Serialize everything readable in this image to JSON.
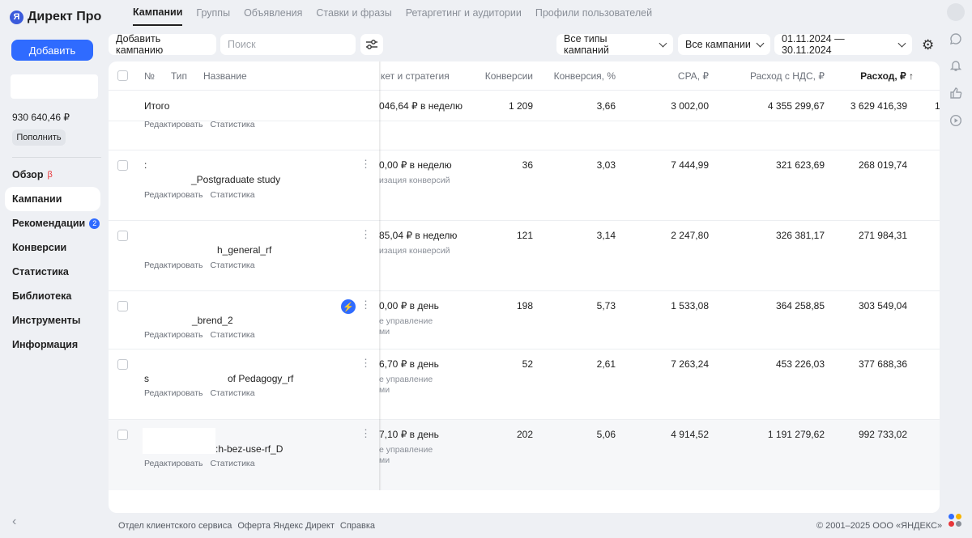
{
  "app": {
    "logo_text": "Директ Про",
    "logo_glyph": "Я"
  },
  "sidebar": {
    "add_button": "Добавить",
    "balance": "930 640,46 ₽",
    "topup_button": "Пополнить",
    "beta_mark": "β",
    "recommendations_badge": "2",
    "items": [
      {
        "label": "Обзор"
      },
      {
        "label": "Кампании"
      },
      {
        "label": "Рекомендации"
      },
      {
        "label": "Конверсии"
      },
      {
        "label": "Статистика"
      },
      {
        "label": "Библиотека"
      },
      {
        "label": "Инструменты"
      },
      {
        "label": "Информация"
      }
    ],
    "collapse_glyph": "‹"
  },
  "tabs": [
    {
      "label": "Кампании"
    },
    {
      "label": "Группы"
    },
    {
      "label": "Объявления"
    },
    {
      "label": "Ставки и фразы"
    },
    {
      "label": "Ретаргетинг и аудитории"
    },
    {
      "label": "Профили пользователей"
    }
  ],
  "toolbar": {
    "add_campaign": "Добавить кампанию",
    "search_placeholder": "Поиск",
    "campaign_types": "Все типы кампаний",
    "campaigns_filter": "Все кампании",
    "date_range": "01.11.2024 — 30.11.2024"
  },
  "table": {
    "headers": {
      "num": "№",
      "type": "Тип",
      "name": "Название",
      "budget": "кет и стратегия",
      "conversions": "Конверсии",
      "conv_rate": "Конверсия, %",
      "cpa": "CPA, ₽",
      "spend_vat": "Расход с НДС, ₽",
      "spend": "Расход, ₽ ↑"
    },
    "links": {
      "edit": "Редактировать",
      "stats": "Статистика"
    },
    "total": {
      "label": "Итого",
      "budget": "046,64 ₽ в неделю",
      "conversions": "1 209",
      "conv_rate": "3,66",
      "cpa": "3 002,00",
      "spend_vat": "4 355 299,67",
      "spend": "3 629 416,39",
      "extra": "1"
    },
    "rows": [
      {
        "prefix": ":",
        "name": "_Postgraduate study",
        "budget": "0,00 ₽ в неделю",
        "budget_sub": "изация конверсий",
        "budget_sub2": "",
        "conversions": "36",
        "conv_rate": "3,03",
        "cpa": "7 444,99",
        "spend_vat": "321 623,69",
        "spend": "268 019,74"
      },
      {
        "prefix": "",
        "name": "h_general_rf",
        "budget": "85,04 ₽ в неделю",
        "budget_sub": "изация конверсий",
        "budget_sub2": "",
        "conversions": "121",
        "conv_rate": "3,14",
        "cpa": "2 247,80",
        "spend_vat": "326 381,17",
        "spend": "271 984,31"
      },
      {
        "prefix": "",
        "name": "_brend_2",
        "budget": "0,00 ₽ в день",
        "budget_sub": "е управление",
        "budget_sub2": "ми",
        "conversions": "198",
        "conv_rate": "5,73",
        "cpa": "1 533,08",
        "spend_vat": "364 258,85",
        "spend": "303 549,04"
      },
      {
        "prefix": "s",
        "name": "of Pedagogy_rf",
        "budget": "6,70 ₽ в день",
        "budget_sub": "е управление",
        "budget_sub2": "ми",
        "conversions": "52",
        "conv_rate": "2,61",
        "cpa": "7 263,24",
        "spend_vat": "453 226,03",
        "spend": "377 688,36"
      },
      {
        "prefix": "",
        "name": ":h-bez-use-rf_D",
        "budget": "7,10 ₽ в день",
        "budget_sub": "е управление",
        "budget_sub2": "ми",
        "conversions": "202",
        "conv_rate": "5,06",
        "cpa": "4 914,52",
        "spend_vat": "1 191 279,62",
        "spend": "992 733,02"
      }
    ]
  },
  "footer": {
    "links": [
      "Отдел клиентского сервиса",
      "Оферта Яндекс Директ",
      "Справка"
    ],
    "copyright": "© 2001–2025 ООО «ЯНДЕКС»"
  },
  "colors": {
    "accent": "#2f6bff",
    "beta": "#e8363a",
    "background": "#eef0f4"
  }
}
